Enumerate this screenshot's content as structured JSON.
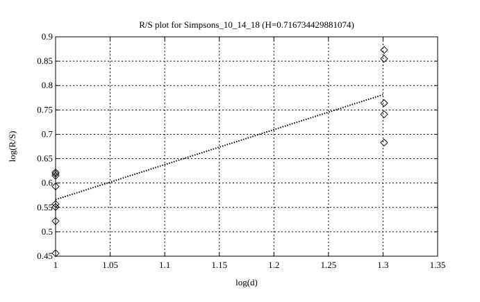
{
  "chart_data": {
    "type": "scatter",
    "title": "R/S plot for Simpsons_10_14_18 (H=0.716734429881074)",
    "xlabel": "log(d)",
    "ylabel": "log(R/S)",
    "xlim": [
      1,
      1.35
    ],
    "ylim": [
      0.45,
      0.9
    ],
    "xticks": [
      "1",
      "1.05",
      "1.1",
      "1.15",
      "1.2",
      "1.25",
      "1.3",
      "1.35"
    ],
    "yticks": [
      "0.45",
      "0.5",
      "0.55",
      "0.6",
      "0.65",
      "0.7",
      "0.75",
      "0.8",
      "0.85",
      "0.9"
    ],
    "grid": true,
    "points": [
      {
        "x": 1,
        "y": 0.622
      },
      {
        "x": 1,
        "y": 0.619
      },
      {
        "x": 1,
        "y": 0.615
      },
      {
        "x": 1,
        "y": 0.593
      },
      {
        "x": 1,
        "y": 0.557
      },
      {
        "x": 1,
        "y": 0.551
      },
      {
        "x": 1,
        "y": 0.522
      },
      {
        "x": 1,
        "y": 0.456
      },
      {
        "x": 1.301,
        "y": 0.873
      },
      {
        "x": 1.301,
        "y": 0.855
      },
      {
        "x": 1.301,
        "y": 0.764
      },
      {
        "x": 1.301,
        "y": 0.741
      },
      {
        "x": 1.301,
        "y": 0.683
      }
    ],
    "fit_line": {
      "x": [
        1,
        1.301
      ],
      "y": [
        0.566,
        0.782
      ],
      "style": "dotted"
    },
    "marker": "diamond",
    "color": "#000000"
  }
}
